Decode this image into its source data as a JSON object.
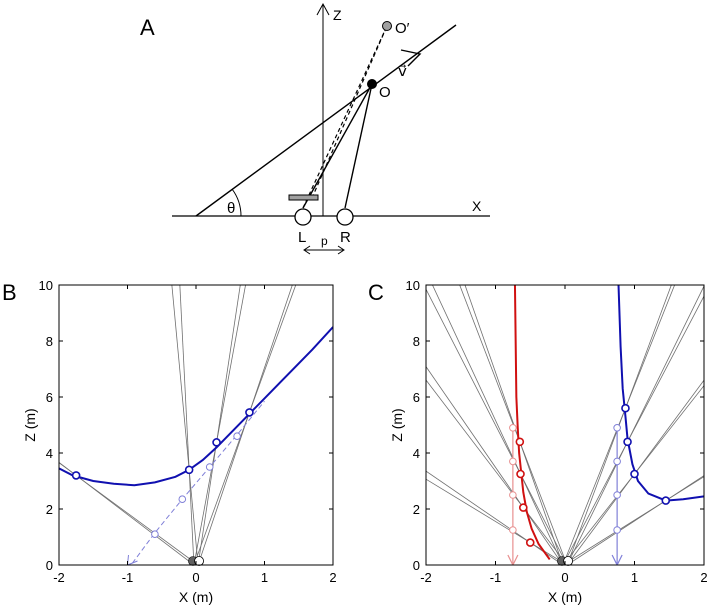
{
  "colors": {
    "ink": "#000000",
    "ray": "#707070",
    "trajectory_blue": "#1010b0",
    "trajectory_red": "#d01010",
    "ghost_blue": "#8080d8",
    "ghost_red": "#e89090",
    "eye_fill": "#ffffff",
    "eye_dark": "#606060",
    "point_gray": "#a0a0a0"
  },
  "panel_a": {
    "label": "A",
    "z_axis": "Z",
    "x_axis": "X",
    "angle": "θ",
    "object": "O",
    "object_prime": "O′",
    "velocity": "v⃗",
    "left_eye": "L",
    "right_eye": "R",
    "separation": "p"
  },
  "chart_data": [
    {
      "panel": "B",
      "type": "line",
      "xlabel": "X (m)",
      "ylabel": "Z (m)",
      "xlim": [
        -2,
        2
      ],
      "ylim": [
        0,
        10
      ],
      "xticks": [
        -2,
        -1,
        0,
        1,
        2
      ],
      "yticks": [
        0,
        2,
        4,
        6,
        8,
        10
      ],
      "true_path": {
        "x": [
          -1.0,
          -0.6,
          -0.2,
          0.2,
          0.6,
          1.0
        ],
        "z": [
          -0.17,
          1.15,
          2.35,
          3.5,
          4.65,
          5.85
        ],
        "arrow_at": [
          -1.0,
          0.0
        ]
      },
      "true_points": {
        "x": [
          -0.6,
          -0.2,
          0.2,
          0.6
        ],
        "z": [
          1.1,
          2.35,
          3.5,
          4.6
        ]
      },
      "perceived_path": {
        "x": [
          -2.0,
          -1.8,
          -1.5,
          -1.2,
          -0.9,
          -0.6,
          -0.3,
          -0.1,
          0.1,
          0.3,
          0.5,
          0.8,
          1.1,
          1.4,
          1.7,
          2.0
        ],
        "z": [
          3.45,
          3.2,
          3.0,
          2.9,
          2.85,
          2.95,
          3.15,
          3.4,
          3.75,
          4.2,
          4.7,
          5.45,
          6.2,
          6.95,
          7.7,
          8.5
        ]
      },
      "perceived_points": {
        "x": [
          -1.75,
          -0.1,
          0.3,
          0.78
        ],
        "z": [
          3.2,
          3.4,
          4.38,
          5.45
        ]
      },
      "eyes_x": [
        -0.03,
        0.03
      ]
    },
    {
      "panel": "C",
      "type": "line",
      "xlabel": "X (m)",
      "ylabel": "Z (m)",
      "xlim": [
        -2,
        2
      ],
      "ylim": [
        0,
        10
      ],
      "xticks": [
        -2,
        -1,
        0,
        1,
        2
      ],
      "yticks": [
        0,
        2,
        4,
        6,
        8,
        10
      ],
      "true_paths": [
        {
          "color": "ghost_red",
          "x": [
            -0.75,
            -0.75
          ],
          "z": [
            4.9,
            0.0
          ],
          "points_z": [
            4.9,
            3.7,
            2.5,
            1.25
          ]
        },
        {
          "color": "ghost_blue",
          "x": [
            0.75,
            0.75
          ],
          "z": [
            4.9,
            0.0
          ],
          "points_z": [
            4.9,
            3.7,
            2.5,
            1.25
          ]
        }
      ],
      "perceived_paths": [
        {
          "color": "trajectory_red",
          "x": [
            -0.72,
            -0.71,
            -0.7,
            -0.68,
            -0.66,
            -0.63,
            -0.6,
            -0.55,
            -0.48,
            -0.38,
            -0.22
          ],
          "z": [
            10.0,
            8.0,
            6.0,
            4.9,
            4.0,
            3.3,
            2.6,
            1.9,
            1.3,
            0.75,
            0.2
          ],
          "points": {
            "x": [
              -0.65,
              -0.64,
              -0.6,
              -0.5
            ],
            "z": [
              4.4,
              3.25,
              2.05,
              0.8
            ]
          }
        },
        {
          "color": "trajectory_blue",
          "x": [
            0.77,
            0.8,
            0.83,
            0.87,
            0.9,
            0.97,
            1.05,
            1.2,
            1.45,
            1.7,
            2.0
          ],
          "z": [
            10.0,
            7.8,
            6.3,
            5.3,
            4.5,
            3.6,
            3.0,
            2.55,
            2.3,
            2.35,
            2.45
          ],
          "points": {
            "x": [
              0.87,
              0.9,
              1.0,
              1.45
            ],
            "z": [
              5.6,
              4.4,
              3.25,
              2.3
            ]
          }
        }
      ],
      "eyes_x": [
        -0.03,
        0.03
      ]
    }
  ]
}
